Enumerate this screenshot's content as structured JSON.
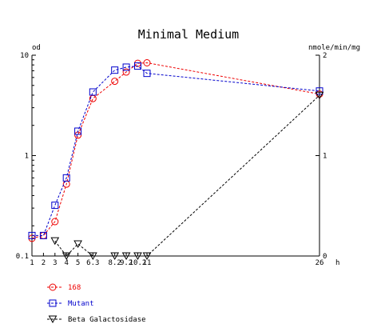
{
  "chart_data": {
    "type": "line",
    "title": "Minimal Medium",
    "x_unit": "h",
    "y_left_label": "od",
    "y_right_label": "nmole/min/mg",
    "y_left_scale": "log",
    "y_left_range": [
      0.1,
      10
    ],
    "y_left_ticks": [
      "10",
      "1",
      "0.1"
    ],
    "y_right_range": [
      0,
      2
    ],
    "y_right_ticks": [
      "2",
      "1",
      "0"
    ],
    "x_range": [
      1,
      26
    ],
    "x_ticks": [
      {
        "value": 1,
        "label": "1"
      },
      {
        "value": 2,
        "label": "2"
      },
      {
        "value": 3,
        "label": "3"
      },
      {
        "value": 4,
        "label": "4"
      },
      {
        "value": 5,
        "label": "5"
      },
      {
        "value": 6.3,
        "label": "6.3"
      },
      {
        "value": 8.2,
        "label": "8.2"
      },
      {
        "value": 9.2,
        "label": "9.2"
      },
      {
        "value": 10.2,
        "label": "10.2"
      },
      {
        "value": 11,
        "label": "11"
      },
      {
        "value": 26,
        "label": "26"
      }
    ],
    "legend_position": "bottom-left",
    "series": [
      {
        "name": "168",
        "axis": "left",
        "color": "#ee0000",
        "marker": "circle",
        "x": [
          1,
          2,
          3,
          4,
          5,
          6.3,
          8.2,
          9.2,
          10.2,
          11,
          26
        ],
        "y": [
          0.15,
          0.16,
          0.22,
          0.52,
          1.6,
          3.7,
          5.5,
          6.8,
          8.3,
          8.4,
          4.1
        ]
      },
      {
        "name": "Mutant",
        "axis": "left",
        "color": "#0000cc",
        "marker": "square",
        "x": [
          1,
          2,
          3,
          4,
          5,
          6.3,
          8.2,
          9.2,
          10.2,
          11,
          26
        ],
        "y": [
          0.16,
          0.16,
          0.32,
          0.6,
          1.75,
          4.3,
          7.1,
          7.6,
          7.8,
          6.6,
          4.4
        ]
      },
      {
        "name": "Beta Galactosidase",
        "axis": "right",
        "color": "#000000",
        "marker": "triangle-down",
        "x": [
          3,
          4,
          5,
          6.3,
          8.2,
          9.2,
          10.2,
          11,
          26
        ],
        "y": [
          0.15,
          0.0,
          0.12,
          0.0,
          0.0,
          0.0,
          0.0,
          0.0,
          1.6
        ]
      }
    ]
  }
}
